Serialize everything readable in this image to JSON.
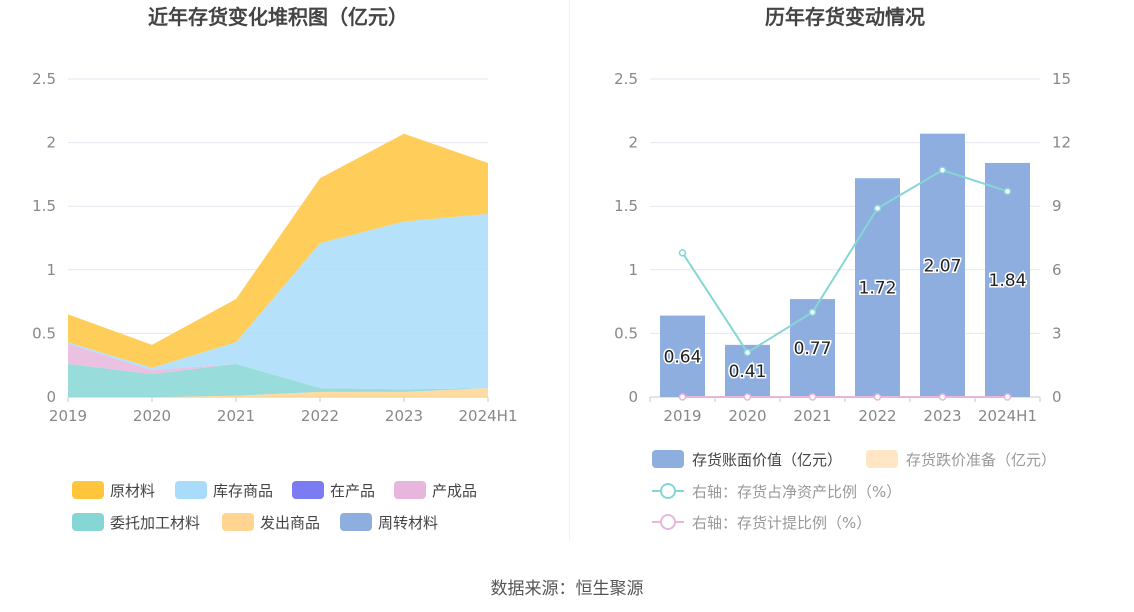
{
  "source": "数据来源：恒生聚源",
  "chart_data": [
    {
      "type": "area",
      "title": "近年存货变化堆积图（亿元）",
      "categories": [
        "2019",
        "2020",
        "2021",
        "2022",
        "2023",
        "2024H1"
      ],
      "ylim": [
        0,
        2.5
      ],
      "yticks": [
        "0",
        "0.5",
        "1",
        "1.5",
        "2",
        "2.5"
      ],
      "legend_placement": "bottom",
      "grid": true,
      "series": [
        {
          "name": "原材料",
          "color": "#ffc53d",
          "values": [
            0.22,
            0.18,
            0.34,
            0.51,
            0.69,
            0.4
          ]
        },
        {
          "name": "库存商品",
          "color": "#a8dcfa",
          "values": [
            0.01,
            0.02,
            0.17,
            1.14,
            1.32,
            1.37
          ]
        },
        {
          "name": "在产品",
          "color": "#7b7cf2",
          "values": [
            0.0,
            0.0,
            0.0,
            0.0,
            0.0,
            0.0
          ]
        },
        {
          "name": "产成品",
          "color": "#e8b6dc",
          "values": [
            0.16,
            0.03,
            0.0,
            0.0,
            0.0,
            0.0
          ]
        },
        {
          "name": "委托加工材料",
          "color": "#86d6d6",
          "values": [
            0.26,
            0.18,
            0.25,
            0.03,
            0.02,
            0.0
          ]
        },
        {
          "name": "发出商品",
          "color": "#ffd591",
          "values": [
            0.0,
            0.0,
            0.01,
            0.04,
            0.04,
            0.07
          ]
        },
        {
          "name": "周转材料",
          "color": "#8eaee0",
          "values": [
            0.0,
            0.0,
            0.0,
            0.0,
            0.0,
            0.0
          ]
        }
      ],
      "legend_order": [
        "原材料",
        "库存商品",
        "在产品",
        "产成品",
        "委托加工材料",
        "发出商品",
        "周转材料"
      ]
    },
    {
      "type": "bar",
      "title": "历年存货变动情况",
      "categories": [
        "2019",
        "2020",
        "2021",
        "2022",
        "2023",
        "2024H1"
      ],
      "ylim": [
        0,
        2.5
      ],
      "yticks": [
        "0",
        "0.5",
        "1",
        "1.5",
        "2",
        "2.5"
      ],
      "y2lim": [
        0,
        15
      ],
      "y2ticks": [
        "0",
        "3",
        "6",
        "9",
        "12",
        "15"
      ],
      "legend_placement": "bottom",
      "grid": true,
      "series": [
        {
          "name": "存货账面价值（亿元）",
          "type": "bar",
          "axis": "left",
          "color": "#8eaee0",
          "values": [
            0.64,
            0.41,
            0.77,
            1.72,
            2.07,
            1.84
          ],
          "labels": [
            "0.64",
            "0.41",
            "0.77",
            "1.72",
            "2.07",
            "1.84"
          ]
        },
        {
          "name": "存货跌价准备（亿元）",
          "type": "bar",
          "axis": "left",
          "color": "#ffe7c6",
          "values": [
            0,
            0,
            0,
            0,
            0,
            0
          ]
        },
        {
          "name": "右轴：存货占净资产比例（%）",
          "type": "line",
          "axis": "right",
          "color": "#86d6d6",
          "values": [
            6.8,
            2.1,
            4.0,
            8.9,
            10.7,
            9.7
          ]
        },
        {
          "name": "右轴：存货计提比例（%）",
          "type": "line",
          "axis": "right",
          "color": "#e8b6dc",
          "values": [
            0,
            0,
            0,
            0,
            0,
            0
          ]
        }
      ]
    }
  ]
}
